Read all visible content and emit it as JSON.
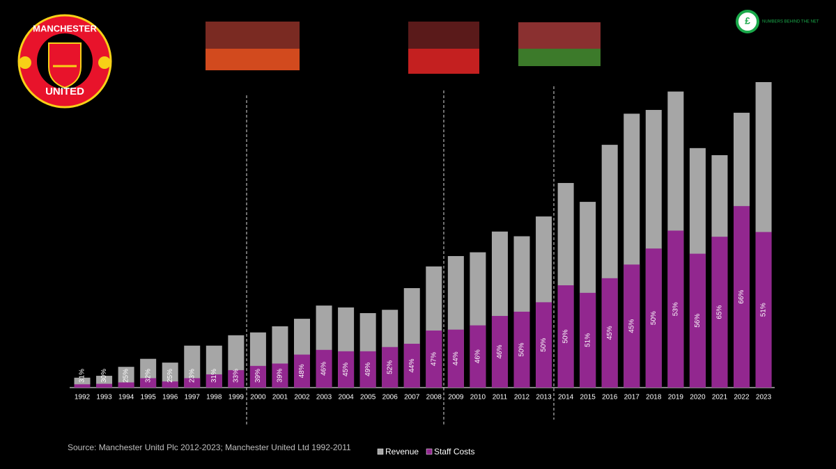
{
  "chart_data": {
    "type": "overlay-bar",
    "categories": [
      "1992",
      "1993",
      "1994",
      "1995",
      "1996",
      "1997",
      "1998",
      "1999",
      "2000",
      "2001",
      "2002",
      "2003",
      "2004",
      "2005",
      "2006",
      "2007",
      "2008",
      "2009",
      "2010",
      "2011",
      "2012",
      "2013",
      "2014",
      "2015",
      "2016",
      "2017",
      "2018",
      "2019",
      "2020",
      "2021",
      "2022",
      "2023"
    ],
    "series": [
      {
        "name": "Revenue",
        "color": "#a6a6a6",
        "values": [
          21,
          25,
          44,
          61,
          53,
          89,
          89,
          111,
          117,
          130,
          146,
          174,
          170,
          158,
          165,
          211,
          257,
          279,
          287,
          331,
          321,
          363,
          434,
          394,
          515,
          581,
          589,
          628,
          508,
          493,
          583,
          648
        ]
      },
      {
        "name": "Staff Costs",
        "color": "#92278f",
        "values": [
          7,
          8,
          11,
          20,
          13,
          20,
          28,
          37,
          46,
          51,
          70,
          80,
          77,
          77,
          86,
          93,
          121,
          123,
          132,
          152,
          161,
          181,
          217,
          201,
          232,
          261,
          295,
          333,
          284,
          320,
          385,
          330
        ],
        "ratio_labels": [
          "31%",
          "30%",
          "25%",
          "32%",
          "25%",
          "23%",
          "31%",
          "33%",
          "39%",
          "39%",
          "48%",
          "46%",
          "45%",
          "49%",
          "52%",
          "44%",
          "47%",
          "44%",
          "46%",
          "46%",
          "50%",
          "50%",
          "50%",
          "51%",
          "45%",
          "45%",
          "50%",
          "53%",
          "56%",
          "65%",
          "66%",
          "51%"
        ]
      }
    ],
    "source": "Source: Manchester Unitd Plc 2012-2023; Manchester United Ltd 1992-2011",
    "logo": {
      "top": "MANCHESTER",
      "bottom": "UNITED"
    },
    "brand": {
      "icon": "£",
      "name": "NUMBERS BEHIND THE NET"
    }
  }
}
